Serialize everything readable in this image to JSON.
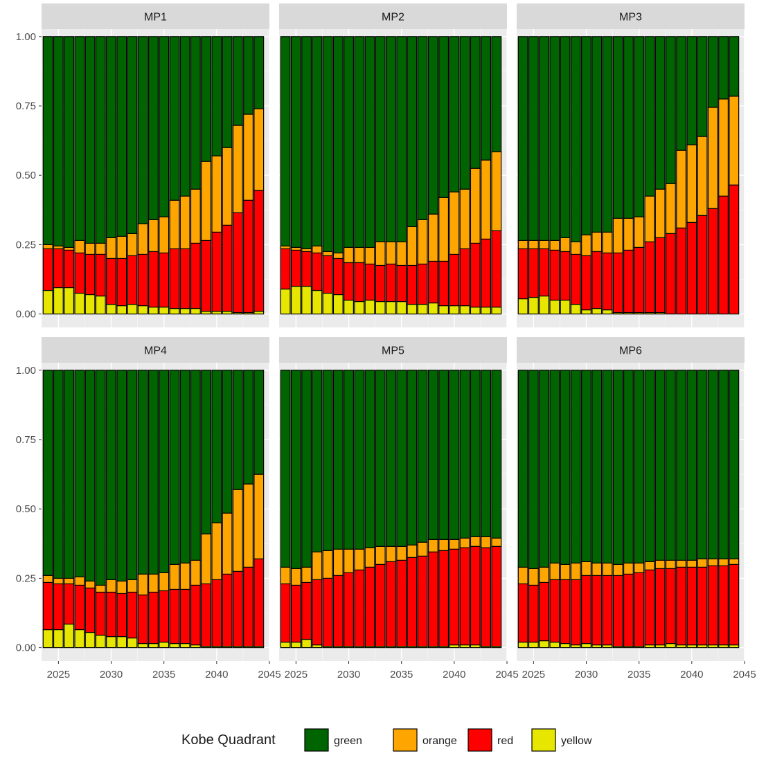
{
  "chart_data": {
    "type": "bar",
    "stacked": true,
    "facets": [
      "MP1",
      "MP2",
      "MP3",
      "MP4",
      "MP5",
      "MP6"
    ],
    "x": [
      2024,
      2025,
      2026,
      2027,
      2028,
      2029,
      2030,
      2031,
      2032,
      2033,
      2034,
      2035,
      2036,
      2037,
      2038,
      2039,
      2040,
      2041,
      2042,
      2043,
      2044
    ],
    "xlim": [
      2023.4,
      2045
    ],
    "xticks": [
      2025,
      2030,
      2035,
      2040,
      2045
    ],
    "ylim": [
      0,
      1
    ],
    "yticks": [
      "0.00",
      "0.25",
      "0.50",
      "0.75",
      "1.00"
    ],
    "grid": true,
    "legend": {
      "title": "Kobe Quadrant",
      "position": "bottom",
      "entries": [
        "green",
        "orange",
        "red",
        "yellow"
      ]
    },
    "colors": {
      "green": "#006400",
      "orange": "#FFA500",
      "red": "#FF0000",
      "yellow": "#E6E600"
    },
    "stack_order_bottom_to_top": [
      "yellow",
      "red",
      "orange",
      "green"
    ],
    "panels": [
      {
        "label": "MP1",
        "yellow": [
          0.085,
          0.095,
          0.095,
          0.075,
          0.07,
          0.065,
          0.035,
          0.03,
          0.035,
          0.03,
          0.025,
          0.025,
          0.02,
          0.02,
          0.02,
          0.01,
          0.01,
          0.01,
          0.005,
          0.005,
          0.01
        ],
        "red": [
          0.15,
          0.14,
          0.135,
          0.145,
          0.145,
          0.15,
          0.165,
          0.17,
          0.175,
          0.185,
          0.2,
          0.195,
          0.215,
          0.215,
          0.235,
          0.255,
          0.285,
          0.31,
          0.36,
          0.405,
          0.435
        ],
        "orange": [
          0.015,
          0.01,
          0.01,
          0.045,
          0.04,
          0.04,
          0.075,
          0.08,
          0.08,
          0.11,
          0.115,
          0.13,
          0.175,
          0.19,
          0.195,
          0.285,
          0.275,
          0.28,
          0.315,
          0.31,
          0.295
        ]
      },
      {
        "label": "MP2",
        "yellow": [
          0.09,
          0.1,
          0.1,
          0.085,
          0.075,
          0.07,
          0.05,
          0.045,
          0.05,
          0.045,
          0.045,
          0.045,
          0.035,
          0.035,
          0.04,
          0.03,
          0.03,
          0.03,
          0.025,
          0.025,
          0.025
        ],
        "red": [
          0.145,
          0.13,
          0.125,
          0.135,
          0.135,
          0.13,
          0.135,
          0.14,
          0.13,
          0.13,
          0.135,
          0.13,
          0.14,
          0.145,
          0.15,
          0.16,
          0.185,
          0.205,
          0.23,
          0.245,
          0.275
        ],
        "orange": [
          0.01,
          0.01,
          0.01,
          0.025,
          0.015,
          0.02,
          0.055,
          0.055,
          0.06,
          0.085,
          0.08,
          0.085,
          0.14,
          0.16,
          0.17,
          0.23,
          0.225,
          0.215,
          0.27,
          0.285,
          0.285
        ]
      },
      {
        "label": "MP3",
        "yellow": [
          0.055,
          0.06,
          0.065,
          0.05,
          0.05,
          0.035,
          0.015,
          0.02,
          0.015,
          0.005,
          0.005,
          0.005,
          0.005,
          0.005,
          0.0,
          0.0,
          0.0,
          0.0,
          0.0,
          0.0,
          0.0
        ],
        "red": [
          0.18,
          0.175,
          0.17,
          0.18,
          0.175,
          0.18,
          0.195,
          0.205,
          0.205,
          0.215,
          0.225,
          0.235,
          0.255,
          0.27,
          0.29,
          0.31,
          0.33,
          0.355,
          0.38,
          0.425,
          0.465
        ],
        "orange": [
          0.03,
          0.03,
          0.03,
          0.035,
          0.05,
          0.045,
          0.075,
          0.07,
          0.075,
          0.125,
          0.115,
          0.11,
          0.165,
          0.175,
          0.18,
          0.28,
          0.28,
          0.285,
          0.365,
          0.35,
          0.32
        ]
      },
      {
        "label": "MP4",
        "yellow": [
          0.065,
          0.065,
          0.085,
          0.065,
          0.055,
          0.045,
          0.04,
          0.04,
          0.035,
          0.015,
          0.015,
          0.02,
          0.015,
          0.015,
          0.01,
          0.005,
          0.005,
          0.005,
          0.005,
          0.005,
          0.005
        ],
        "red": [
          0.17,
          0.165,
          0.145,
          0.16,
          0.16,
          0.155,
          0.16,
          0.155,
          0.165,
          0.175,
          0.185,
          0.185,
          0.195,
          0.195,
          0.215,
          0.225,
          0.24,
          0.26,
          0.27,
          0.285,
          0.315
        ],
        "orange": [
          0.025,
          0.02,
          0.02,
          0.03,
          0.025,
          0.025,
          0.045,
          0.045,
          0.045,
          0.075,
          0.065,
          0.065,
          0.09,
          0.095,
          0.09,
          0.18,
          0.205,
          0.22,
          0.295,
          0.3,
          0.305
        ]
      },
      {
        "label": "MP5",
        "yellow": [
          0.02,
          0.02,
          0.03,
          0.01,
          0.005,
          0.005,
          0.005,
          0.005,
          0.005,
          0.005,
          0.005,
          0.005,
          0.005,
          0.005,
          0.005,
          0.005,
          0.01,
          0.01,
          0.01,
          0.005,
          0.005
        ],
        "red": [
          0.21,
          0.205,
          0.205,
          0.235,
          0.245,
          0.255,
          0.265,
          0.275,
          0.285,
          0.295,
          0.305,
          0.31,
          0.32,
          0.325,
          0.34,
          0.345,
          0.345,
          0.35,
          0.355,
          0.355,
          0.36
        ],
        "orange": [
          0.06,
          0.06,
          0.055,
          0.1,
          0.1,
          0.095,
          0.085,
          0.075,
          0.07,
          0.065,
          0.055,
          0.05,
          0.045,
          0.05,
          0.045,
          0.04,
          0.035,
          0.035,
          0.035,
          0.04,
          0.03
        ]
      },
      {
        "label": "MP6",
        "yellow": [
          0.02,
          0.02,
          0.025,
          0.02,
          0.015,
          0.01,
          0.015,
          0.01,
          0.01,
          0.005,
          0.005,
          0.005,
          0.01,
          0.01,
          0.015,
          0.01,
          0.01,
          0.01,
          0.01,
          0.01,
          0.01
        ],
        "red": [
          0.21,
          0.205,
          0.21,
          0.225,
          0.23,
          0.235,
          0.245,
          0.25,
          0.25,
          0.255,
          0.26,
          0.265,
          0.27,
          0.275,
          0.27,
          0.28,
          0.28,
          0.28,
          0.285,
          0.285,
          0.29
        ],
        "orange": [
          0.06,
          0.06,
          0.055,
          0.06,
          0.055,
          0.06,
          0.05,
          0.045,
          0.045,
          0.04,
          0.04,
          0.035,
          0.03,
          0.03,
          0.03,
          0.025,
          0.025,
          0.03,
          0.025,
          0.025,
          0.02
        ]
      }
    ]
  }
}
